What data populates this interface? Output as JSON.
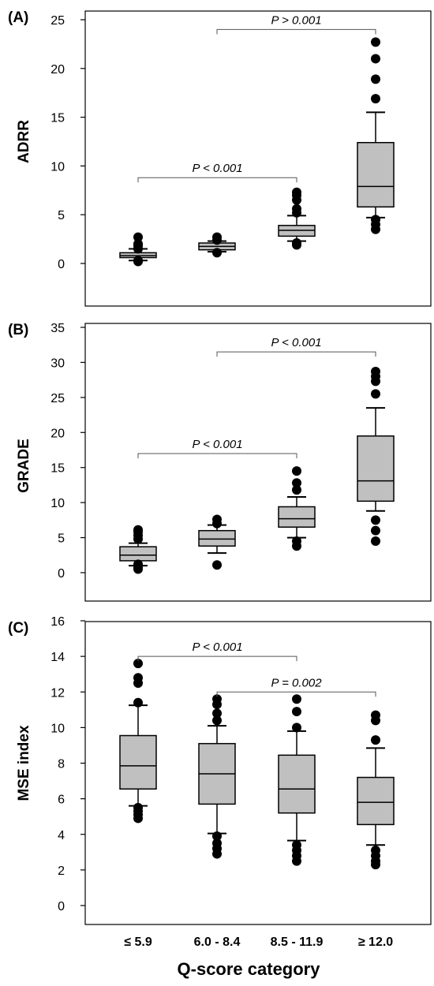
{
  "chart_data": [
    {
      "type": "box",
      "panel_label": "(A)",
      "ylabel": "ADRR",
      "ylim": [
        -4.5,
        25
      ],
      "yticks": [
        "0",
        "5",
        "10",
        "15",
        "20",
        "25"
      ],
      "categories": [
        "≤ 5.9",
        "6.0 - 8.4",
        "8.5 - 11.9",
        "≥ 12.0"
      ],
      "boxes": [
        {
          "whisker_low": 0.3,
          "q1": 0.6,
          "median": 0.8,
          "q3": 1.1,
          "whisker_high": 1.5,
          "outliers": [
            0.2,
            0.3,
            1.5,
            1.8,
            2.0,
            2.7
          ]
        },
        {
          "whisker_low": 1.2,
          "q1": 1.4,
          "median": 1.75,
          "q3": 2.1,
          "whisker_high": 2.3,
          "outliers": [
            1.1,
            2.4,
            2.7
          ]
        },
        {
          "whisker_low": 2.3,
          "q1": 2.8,
          "median": 3.4,
          "q3": 3.9,
          "whisker_high": 4.9,
          "outliers": [
            1.9,
            2.1,
            5.2,
            5.6,
            6.5,
            7.0,
            7.3
          ]
        },
        {
          "whisker_low": 4.7,
          "q1": 5.8,
          "median": 7.9,
          "q3": 12.4,
          "whisker_high": 15.5,
          "outliers": [
            3.5,
            4.0,
            4.5,
            16.9,
            18.9,
            21.0,
            22.7
          ]
        }
      ],
      "annotations": [
        {
          "text": "P < 0.001",
          "from": 0,
          "to": 2,
          "y": 8.8
        },
        {
          "text": "P > 0.001",
          "from": 1,
          "to": 3,
          "y": 24.0
        }
      ]
    },
    {
      "type": "box",
      "panel_label": "(B)",
      "ylabel": "GRADE",
      "ylim": [
        -3.7,
        35
      ],
      "yticks": [
        "0",
        "5",
        "10",
        "15",
        "20",
        "25",
        "30",
        "35"
      ],
      "categories": [
        "≤ 5.9",
        "6.0 - 8.4",
        "8.5 - 11.9",
        "≥ 12.0"
      ],
      "boxes": [
        {
          "whisker_low": 1.0,
          "q1": 1.7,
          "median": 2.5,
          "q3": 3.7,
          "whisker_high": 4.2,
          "outliers": [
            0.5,
            0.8,
            1.2,
            4.8,
            5.3,
            5.8,
            6.1
          ]
        },
        {
          "whisker_low": 2.8,
          "q1": 3.8,
          "median": 4.8,
          "q3": 6.0,
          "whisker_high": 6.8,
          "outliers": [
            1.1,
            7.0,
            7.6
          ]
        },
        {
          "whisker_low": 5.0,
          "q1": 6.5,
          "median": 7.7,
          "q3": 9.4,
          "whisker_high": 10.8,
          "outliers": [
            3.8,
            4.5,
            11.8,
            12.8,
            14.5
          ]
        },
        {
          "whisker_low": 8.8,
          "q1": 10.2,
          "median": 13.1,
          "q3": 19.5,
          "whisker_high": 23.5,
          "outliers": [
            4.5,
            6.0,
            7.5,
            25.5,
            27.3,
            28.0,
            28.7
          ]
        }
      ],
      "annotations": [
        {
          "text": "P < 0.001",
          "from": 0,
          "to": 2,
          "y": 17.0
        },
        {
          "text": "P < 0.001",
          "from": 1,
          "to": 3,
          "y": 31.5
        }
      ]
    },
    {
      "type": "box",
      "panel_label": "(C)",
      "ylabel": "MSE index",
      "ylim": [
        0,
        16
      ],
      "yticks": [
        "0",
        "2",
        "4",
        "6",
        "8",
        "10",
        "12",
        "14",
        "16"
      ],
      "categories": [
        "≤ 5.9",
        "6.0 - 8.4",
        "8.5 - 11.9",
        "≥ 12.0"
      ],
      "boxes": [
        {
          "whisker_low": 5.6,
          "q1": 6.55,
          "median": 7.85,
          "q3": 9.55,
          "whisker_high": 11.25,
          "outliers": [
            4.9,
            5.1,
            5.3,
            5.5,
            11.4,
            12.5,
            12.8,
            13.6
          ]
        },
        {
          "whisker_low": 4.05,
          "q1": 5.7,
          "median": 7.4,
          "q3": 9.1,
          "whisker_high": 10.1,
          "outliers": [
            2.9,
            3.2,
            3.5,
            3.9,
            10.4,
            10.8,
            11.3,
            11.6
          ]
        },
        {
          "whisker_low": 3.65,
          "q1": 5.2,
          "median": 6.55,
          "q3": 8.45,
          "whisker_high": 9.8,
          "outliers": [
            2.5,
            2.8,
            3.1,
            3.4,
            10.0,
            10.9,
            11.6
          ]
        },
        {
          "whisker_low": 3.4,
          "q1": 4.55,
          "median": 5.8,
          "q3": 7.2,
          "whisker_high": 8.85,
          "outliers": [
            2.3,
            2.5,
            2.8,
            3.1,
            9.3,
            10.4,
            10.7
          ]
        }
      ],
      "annotations": [
        {
          "text": "P < 0.001",
          "from": 0,
          "to": 2,
          "y": 14.0
        },
        {
          "text": "P = 0.002",
          "from": 1,
          "to": 3,
          "y": 12.0
        }
      ]
    }
  ],
  "xlabel": "Q-score category",
  "colors": {
    "box_fill": "#c0c0c0",
    "stroke": "#000000",
    "annotation_line": "#555555"
  }
}
